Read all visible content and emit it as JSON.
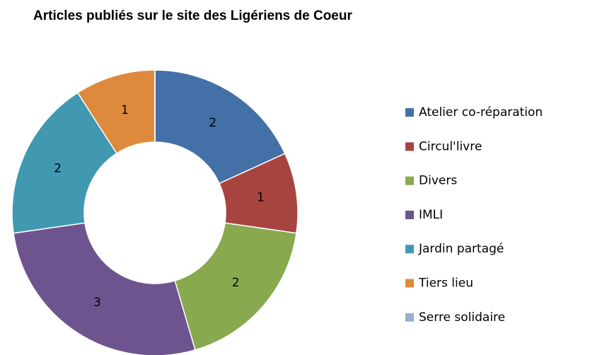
{
  "chart_data": {
    "type": "donut",
    "title": "Articles publiés sur le site des Ligériens de Coeur",
    "categories": [
      "Atelier co-réparation",
      "Circul'livre",
      "Divers",
      "IMLI",
      "Jardin partagé",
      "Tiers lieu",
      "Serre solidaire"
    ],
    "values": [
      2,
      1,
      2,
      3,
      2,
      1,
      0
    ],
    "colors": [
      "#4470a8",
      "#a8443f",
      "#88a94e",
      "#6e548e",
      "#4099b0",
      "#dd8a3c",
      "#99b0d4"
    ],
    "legend": "right"
  }
}
